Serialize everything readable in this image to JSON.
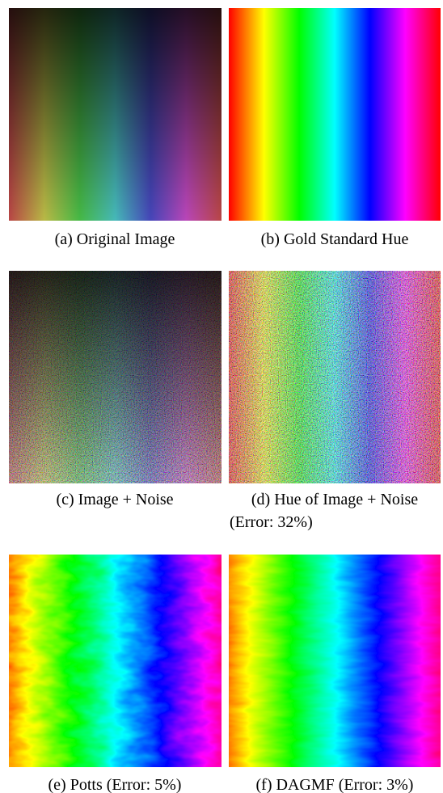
{
  "panels": [
    {
      "caption": [
        "(a) Original Image"
      ]
    },
    {
      "caption": [
        "(b) Gold Standard Hue"
      ]
    },
    {
      "caption": [
        "(c) Image + Noise"
      ]
    },
    {
      "caption": [
        "(d) Hue of Image + Noise",
        "(Error: 32%)"
      ]
    },
    {
      "caption": [
        "(e) Potts (Error: 5%)"
      ]
    },
    {
      "caption": [
        "(f) DAGMF (Error: 3%)"
      ]
    }
  ]
}
